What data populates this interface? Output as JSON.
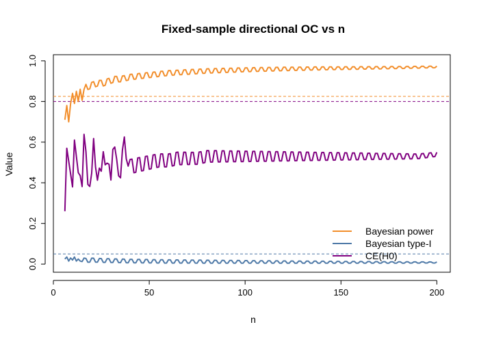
{
  "chart_data": {
    "type": "line",
    "title": "Fixed-sample directional OC vs n",
    "xlabel": "n",
    "ylabel": "Value",
    "xlim": [
      0,
      207
    ],
    "ylim": [
      -0.04,
      1.03
    ],
    "x_ticks": [
      0,
      50,
      100,
      150,
      200
    ],
    "x_tick_labels": [
      "0",
      "50",
      "100",
      "150",
      "200"
    ],
    "y_ticks": [
      0.0,
      0.2,
      0.4,
      0.6,
      0.8,
      1.0
    ],
    "y_tick_labels": [
      "0.0",
      "0.2",
      "0.4",
      "0.6",
      "0.8",
      "1.0"
    ],
    "grid": false,
    "legend_position": "bottom-right",
    "reference_lines": [
      {
        "y": 0.825,
        "color": "#F28E2B",
        "style": "dashed"
      },
      {
        "y": 0.8,
        "color": "#800080",
        "style": "dashed"
      },
      {
        "y": 0.05,
        "color": "#4E79A7",
        "style": "dashed"
      }
    ],
    "series": [
      {
        "name": "Bayesian power",
        "color": "#F28E2B",
        "x": [
          6,
          7,
          8,
          9,
          10,
          11,
          12,
          13,
          14,
          15,
          17,
          20,
          23,
          26,
          29,
          32,
          35,
          40,
          50,
          60,
          70,
          80,
          90,
          100,
          120,
          140,
          160,
          180,
          200
        ],
        "y": [
          0.71,
          0.78,
          0.7,
          0.79,
          0.84,
          0.79,
          0.85,
          0.8,
          0.86,
          0.82,
          0.87,
          0.88,
          0.89,
          0.89,
          0.9,
          0.91,
          0.91,
          0.92,
          0.93,
          0.94,
          0.945,
          0.95,
          0.953,
          0.956,
          0.96,
          0.963,
          0.965,
          0.967,
          0.97
        ],
        "ripple": 0.015
      },
      {
        "name": "Bayesian type-I",
        "color": "#4E79A7",
        "x": [
          6,
          7,
          8,
          9,
          10,
          11,
          12,
          13,
          14,
          15,
          17,
          20,
          25,
          30,
          40,
          50,
          60,
          80,
          100,
          120,
          150,
          180,
          200
        ],
        "y": [
          0.025,
          0.035,
          0.015,
          0.03,
          0.02,
          0.035,
          0.015,
          0.025,
          0.015,
          0.022,
          0.018,
          0.02,
          0.018,
          0.017,
          0.015,
          0.014,
          0.013,
          0.012,
          0.011,
          0.01,
          0.009,
          0.008,
          0.008
        ],
        "ripple": 0.01
      },
      {
        "name": "CE(H0)",
        "color": "#800080",
        "x": [
          6,
          7,
          10,
          11,
          13,
          15,
          16,
          18,
          20,
          21,
          23,
          25,
          26,
          28,
          30,
          31,
          33,
          35,
          37,
          40,
          45,
          50,
          55,
          60,
          65,
          70,
          75,
          80,
          90,
          100,
          110,
          120,
          130,
          140,
          150,
          160,
          170,
          180,
          190,
          200
        ],
        "y": [
          0.26,
          0.57,
          0.38,
          0.61,
          0.45,
          0.42,
          0.6,
          0.43,
          0.41,
          0.58,
          0.45,
          0.42,
          0.59,
          0.46,
          0.45,
          0.6,
          0.48,
          0.46,
          0.59,
          0.48,
          0.49,
          0.5,
          0.51,
          0.51,
          0.52,
          0.52,
          0.52,
          0.53,
          0.53,
          0.53,
          0.53,
          0.53,
          0.53,
          0.53,
          0.53,
          0.53,
          0.53,
          0.53,
          0.53,
          0.54
        ],
        "ripple": 0.04
      }
    ]
  }
}
